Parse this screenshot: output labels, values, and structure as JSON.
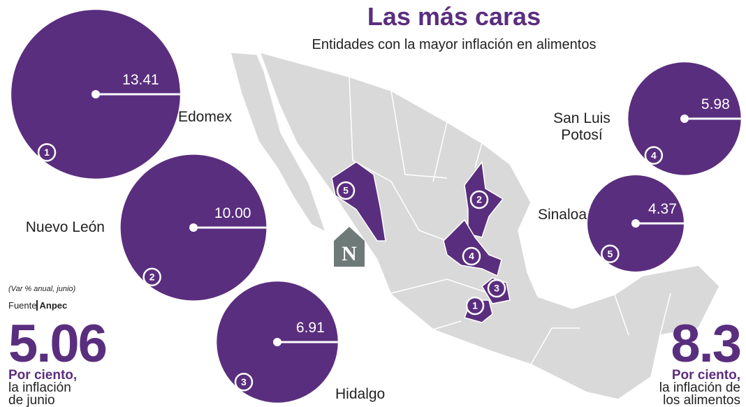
{
  "chart_data": {
    "type": "bubble",
    "title": "Las más caras",
    "subtitle": "Entidades con la mayor inflación en alimentos",
    "categories": [
      "Edomex",
      "Nuevo León",
      "Hidalgo",
      "San Luis Potosí",
      "Sinaloa"
    ],
    "values": [
      13.41,
      10.0,
      6.91,
      5.98,
      4.37
    ],
    "value_labels": [
      "13.41",
      "10.00",
      "6.91",
      "5.98",
      "4.37"
    ],
    "ranks": [
      1,
      2,
      3,
      4,
      5
    ],
    "color": "#5a2e7e",
    "note": "(Var % anual, junio)",
    "source_label": "Fuente",
    "source": "Anpec",
    "logo": "N"
  },
  "stats": [
    {
      "value": 5.06,
      "label": "Por ciento,",
      "text": "la inflación de junio"
    },
    {
      "value": 8.3,
      "label": "Por ciento,",
      "text": "la inflación de los alimentos"
    }
  ]
}
